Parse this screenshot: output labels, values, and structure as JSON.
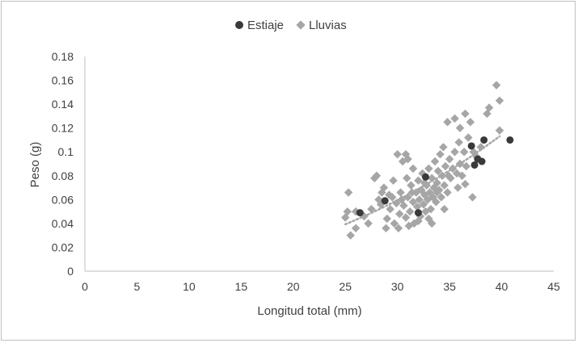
{
  "chart_data": {
    "type": "scatter",
    "title": "",
    "xlabel": "Longitud total (mm)",
    "ylabel": "Peso (g)",
    "xlim": [
      0,
      45
    ],
    "ylim": [
      0,
      0.18
    ],
    "xticks": [
      0,
      5,
      10,
      15,
      20,
      25,
      30,
      35,
      40,
      45
    ],
    "yticks": [
      0,
      0.02,
      0.04,
      0.06,
      0.08,
      0.1,
      0.12,
      0.14,
      0.16,
      0.18
    ],
    "xtick_labels": [
      "0",
      "5",
      "10",
      "15",
      "20",
      "25",
      "30",
      "35",
      "40",
      "45"
    ],
    "ytick_labels": [
      "0",
      "0.02",
      "0.04",
      "0.06",
      "0.08",
      "0.1",
      "0.12",
      "0.14",
      "0.16",
      "0.18"
    ],
    "grid": false,
    "legend_position": "top",
    "series": [
      {
        "name": "Estiaje",
        "marker": "circle",
        "color": "#3a3a3a",
        "trendline": {
          "type": "power",
          "a": 0.001,
          "b": 1.86,
          "x_range": [
            26.4,
            40.8
          ],
          "color": "#3a3a3a"
        },
        "points": [
          [
            26.4,
            0.049
          ],
          [
            28.8,
            0.059
          ],
          [
            32.7,
            0.079
          ],
          [
            32.0,
            0.049
          ],
          [
            37.1,
            0.105
          ],
          [
            37.4,
            0.089
          ],
          [
            38.1,
            0.092
          ],
          [
            38.3,
            0.11
          ],
          [
            40.8,
            0.11
          ],
          [
            37.7,
            0.094
          ]
        ]
      },
      {
        "name": "Lluvias",
        "marker": "diamond",
        "color": "#a6a6a6",
        "trendline": {
          "type": "power",
          "a": 2.64e-05,
          "b": 2.27,
          "x_range": [
            25.0,
            39.8
          ],
          "color": "#a6a6a6"
        },
        "points": [
          [
            39.5,
            0.156
          ],
          [
            39.8,
            0.143
          ],
          [
            38.8,
            0.137
          ],
          [
            38.6,
            0.132
          ],
          [
            36.5,
            0.132
          ],
          [
            37.0,
            0.125
          ],
          [
            34.8,
            0.125
          ],
          [
            35.5,
            0.128
          ],
          [
            36.0,
            0.12
          ],
          [
            39.8,
            0.118
          ],
          [
            30.0,
            0.098
          ],
          [
            30.8,
            0.098
          ],
          [
            30.5,
            0.092
          ],
          [
            31.0,
            0.094
          ],
          [
            27.8,
            0.078
          ],
          [
            28.0,
            0.08
          ],
          [
            25.3,
            0.066
          ],
          [
            25.5,
            0.03
          ],
          [
            26.0,
            0.036
          ],
          [
            37.2,
            0.062
          ],
          [
            36.5,
            0.073
          ],
          [
            26.0,
            0.05
          ],
          [
            25.0,
            0.045
          ],
          [
            25.2,
            0.05
          ],
          [
            26.8,
            0.046
          ],
          [
            27.5,
            0.052
          ],
          [
            28.2,
            0.06
          ],
          [
            28.5,
            0.066
          ],
          [
            28.7,
            0.07
          ],
          [
            29.0,
            0.044
          ],
          [
            29.3,
            0.052
          ],
          [
            29.5,
            0.062
          ],
          [
            29.7,
            0.04
          ],
          [
            29.9,
            0.057
          ],
          [
            30.2,
            0.048
          ],
          [
            30.3,
            0.066
          ],
          [
            30.6,
            0.055
          ],
          [
            30.8,
            0.045
          ],
          [
            31.0,
            0.062
          ],
          [
            31.2,
            0.05
          ],
          [
            31.3,
            0.072
          ],
          [
            31.5,
            0.058
          ],
          [
            31.6,
            0.04
          ],
          [
            31.8,
            0.066
          ],
          [
            31.9,
            0.054
          ],
          [
            32.0,
            0.076
          ],
          [
            32.1,
            0.06
          ],
          [
            32.2,
            0.046
          ],
          [
            32.3,
            0.068
          ],
          [
            32.4,
            0.082
          ],
          [
            32.5,
            0.056
          ],
          [
            32.6,
            0.064
          ],
          [
            32.7,
            0.05
          ],
          [
            32.8,
            0.072
          ],
          [
            32.9,
            0.06
          ],
          [
            33.0,
            0.086
          ],
          [
            33.1,
            0.066
          ],
          [
            33.2,
            0.052
          ],
          [
            33.3,
            0.078
          ],
          [
            33.4,
            0.062
          ],
          [
            33.5,
            0.07
          ],
          [
            33.6,
            0.092
          ],
          [
            33.7,
            0.058
          ],
          [
            33.8,
            0.074
          ],
          [
            33.9,
            0.084
          ],
          [
            34.0,
            0.068
          ],
          [
            34.1,
            0.098
          ],
          [
            34.2,
            0.062
          ],
          [
            34.3,
            0.08
          ],
          [
            34.4,
            0.104
          ],
          [
            34.5,
            0.072
          ],
          [
            34.6,
            0.088
          ],
          [
            34.8,
            0.066
          ],
          [
            35.0,
            0.094
          ],
          [
            35.1,
            0.078
          ],
          [
            35.3,
            0.086
          ],
          [
            35.5,
            0.1
          ],
          [
            35.7,
            0.082
          ],
          [
            35.9,
            0.108
          ],
          [
            36.0,
            0.09
          ],
          [
            36.2,
            0.08
          ],
          [
            36.4,
            0.1
          ],
          [
            36.6,
            0.088
          ],
          [
            36.8,
            0.112
          ],
          [
            37.3,
            0.1
          ],
          [
            37.6,
            0.096
          ],
          [
            38.0,
            0.104
          ],
          [
            31.5,
            0.086
          ],
          [
            30.9,
            0.078
          ],
          [
            29.6,
            0.076
          ],
          [
            28.9,
            0.036
          ],
          [
            30.1,
            0.036
          ],
          [
            31.1,
            0.038
          ],
          [
            32.0,
            0.042
          ],
          [
            33.0,
            0.044
          ],
          [
            27.2,
            0.04
          ],
          [
            28.4,
            0.056
          ],
          [
            29.2,
            0.064
          ],
          [
            30.4,
            0.06
          ],
          [
            31.4,
            0.066
          ],
          [
            32.6,
            0.074
          ],
          [
            33.8,
            0.066
          ],
          [
            34.9,
            0.08
          ],
          [
            35.8,
            0.07
          ],
          [
            34.5,
            0.052
          ],
          [
            33.3,
            0.04
          ]
        ]
      }
    ]
  }
}
